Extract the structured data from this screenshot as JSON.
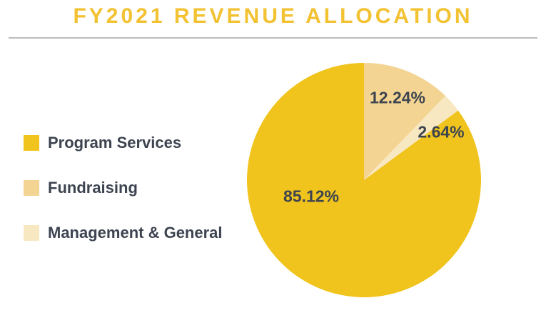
{
  "header": {
    "title": "FY2021 REVENUE ALLOCATION"
  },
  "theme": {
    "title_color": "#F2C233",
    "text_color": "#3D4450",
    "divider_color": "#BCBCBC",
    "background": "#FFFFFF",
    "gold": "#F0C41D",
    "tan": "#F3D492",
    "cream": "#F8E8C2"
  },
  "legend": {
    "items": [
      {
        "label": "Program Services",
        "color": "#F0C41D"
      },
      {
        "label": "Fundraising",
        "color": "#F3D492"
      },
      {
        "label": "Management & General",
        "color": "#F8E8C2"
      }
    ]
  },
  "chart_data": {
    "type": "pie",
    "title": "FY2021 REVENUE ALLOCATION",
    "unit": "%",
    "start_angle_deg": 0,
    "direction": "clockwise",
    "legend_position": "left",
    "slices": [
      {
        "name": "Fundraising",
        "value": 12.24,
        "label": "12.24%",
        "color": "#F3D492"
      },
      {
        "name": "Management & General",
        "value": 2.64,
        "label": "2.64%",
        "color": "#F8E8C2"
      },
      {
        "name": "Program Services",
        "value": 85.12,
        "label": "85.12%",
        "color": "#F0C41D"
      }
    ]
  }
}
